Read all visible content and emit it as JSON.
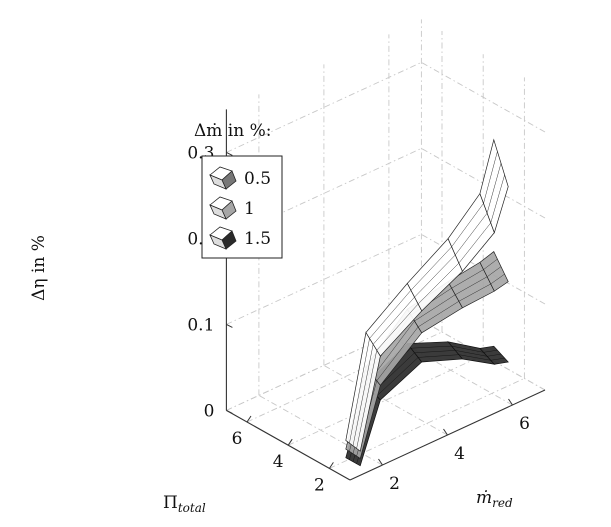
{
  "chart_data": {
    "type": "surface3d",
    "title": "",
    "xlabel": "Π",
    "xlabel_sub": "total",
    "ylabel": "ṁ",
    "ylabel_sub": "red",
    "zlabel": "Δη in %",
    "x_ticks": [
      "2",
      "4",
      "6"
    ],
    "y_ticks": [
      "2",
      "4",
      "6"
    ],
    "z_ticks": [
      "0",
      "0.1",
      "0.2",
      "0.3"
    ],
    "xlim": [
      1,
      7
    ],
    "ylim": [
      1,
      7
    ],
    "zlim": [
      0,
      0.35
    ],
    "grid": true,
    "legend": {
      "title": "Δṁ in %:",
      "position": "top-left",
      "entries": [
        "0.5",
        "1",
        "1.5"
      ]
    },
    "series": [
      {
        "name": "0.5",
        "color": "#ffffff",
        "edge_color": "#222222",
        "points": [
          {
            "pi": 1.8,
            "m": 1.6,
            "deta": 0.02
          },
          {
            "pi": 2.4,
            "m": 2.6,
            "deta": 0.12
          },
          {
            "pi": 2.6,
            "m": 4.0,
            "deta": 0.15
          },
          {
            "pi": 2.2,
            "m": 5.0,
            "deta": 0.19
          },
          {
            "pi": 1.6,
            "m": 5.6,
            "deta": 0.24
          },
          {
            "pi": 1.4,
            "m": 5.9,
            "deta": 0.3
          }
        ]
      },
      {
        "name": "1",
        "color": "#a6a6a6",
        "edge_color": "#222222",
        "points": [
          {
            "pi": 1.8,
            "m": 1.6,
            "deta": 0.01
          },
          {
            "pi": 2.4,
            "m": 2.6,
            "deta": 0.08
          },
          {
            "pi": 2.6,
            "m": 4.0,
            "deta": 0.12
          },
          {
            "pi": 2.2,
            "m": 5.0,
            "deta": 0.14
          },
          {
            "pi": 1.6,
            "m": 5.6,
            "deta": 0.16
          },
          {
            "pi": 1.4,
            "m": 5.9,
            "deta": 0.17
          }
        ]
      },
      {
        "name": "1.5",
        "color": "#2a2a2a",
        "edge_color": "#111111",
        "points": [
          {
            "pi": 1.8,
            "m": 1.6,
            "deta": 0.0
          },
          {
            "pi": 2.4,
            "m": 2.6,
            "deta": 0.06
          },
          {
            "pi": 2.6,
            "m": 4.0,
            "deta": 0.08
          },
          {
            "pi": 2.2,
            "m": 5.0,
            "deta": 0.07
          },
          {
            "pi": 1.6,
            "m": 5.6,
            "deta": 0.06
          },
          {
            "pi": 1.4,
            "m": 5.9,
            "deta": 0.06
          }
        ]
      }
    ]
  }
}
